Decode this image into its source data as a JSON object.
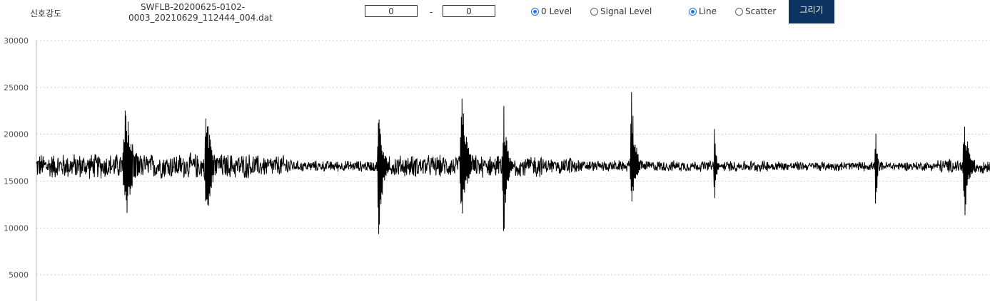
{
  "header": {
    "title": "신호강도",
    "filename_line1": "SWFLB-20200625-0102-",
    "filename_line2": "0003_20210629_112444_004.dat",
    "range_from": "0",
    "range_separator": "-",
    "range_to": "0",
    "level_options": [
      {
        "label": "0 Level",
        "selected": true
      },
      {
        "label": "Signal Level",
        "selected": false
      }
    ],
    "plot_options": [
      {
        "label": "Line",
        "selected": true
      },
      {
        "label": "Scatter",
        "selected": false
      }
    ],
    "draw_button": "그리기",
    "draw_button_color": "#0d3461",
    "accent_color": "#1a73e8"
  },
  "chart_data": {
    "type": "line",
    "ylim": [
      0,
      30000
    ],
    "yticks": [
      5000,
      10000,
      15000,
      20000,
      25000,
      30000
    ],
    "tick_labels": [
      "5000",
      "10000",
      "15000",
      "20000",
      "25000",
      "30000"
    ],
    "grid": "horizontal-dotted",
    "line_color": "#000000",
    "baseline": 16600,
    "noise_segments": [
      {
        "x": [
          0.0,
          0.23
        ],
        "amplitude": 1500
      },
      {
        "x": [
          0.23,
          0.268
        ],
        "amplitude": 1300
      },
      {
        "x": [
          0.268,
          0.37
        ],
        "amplitude": 650
      },
      {
        "x": [
          0.37,
          0.53
        ],
        "amplitude": 1300
      },
      {
        "x": [
          0.53,
          0.57
        ],
        "amplitude": 900
      },
      {
        "x": [
          0.57,
          0.78
        ],
        "amplitude": 650
      },
      {
        "x": [
          0.78,
          0.945
        ],
        "amplitude": 550
      },
      {
        "x": [
          0.945,
          1.0
        ],
        "amplitude": 850
      }
    ],
    "bursts": [
      {
        "x": 0.093,
        "width": 0.02,
        "max": 24700,
        "min": 9300
      },
      {
        "x": 0.178,
        "width": 0.014,
        "max": 24200,
        "min": 8300
      },
      {
        "x": 0.359,
        "width": 0.012,
        "max": 23900,
        "min": 8200
      },
      {
        "x": 0.446,
        "width": 0.015,
        "max": 25300,
        "min": 9700
      },
      {
        "x": 0.49,
        "width": 0.01,
        "max": 24000,
        "min": 8500
      },
      {
        "x": 0.559,
        "width": 0.006,
        "max": 18500,
        "min": 15200
      },
      {
        "x": 0.624,
        "width": 0.012,
        "max": 24700,
        "min": 11100
      },
      {
        "x": 0.711,
        "width": 0.005,
        "max": 21700,
        "min": 11300
      },
      {
        "x": 0.88,
        "width": 0.005,
        "max": 21000,
        "min": 10800
      },
      {
        "x": 0.973,
        "width": 0.012,
        "max": 23000,
        "min": 9900
      }
    ]
  }
}
